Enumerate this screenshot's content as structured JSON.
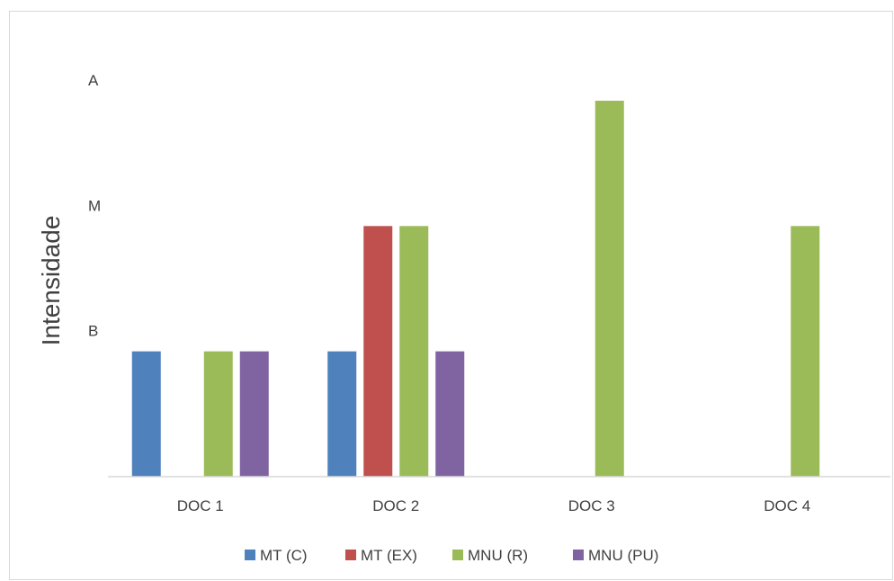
{
  "chart_data": {
    "type": "bar",
    "ylabel": "Intensidade",
    "xlabel": "",
    "categories": [
      "DOC 1",
      "DOC 2",
      "DOC 3",
      "DOC 4"
    ],
    "y_levels": [
      "B",
      "M",
      "A"
    ],
    "ylim": [
      0,
      3
    ],
    "grid": false,
    "legend_position": "bottom",
    "series": [
      {
        "name": "MT (C)",
        "color": "#4f81bd",
        "values": [
          1,
          1,
          0,
          0
        ]
      },
      {
        "name": "MT (EX)",
        "color": "#c0504d",
        "values": [
          0,
          2,
          0,
          0
        ]
      },
      {
        "name": "MNU (R)",
        "color": "#9bbb59",
        "values": [
          1,
          2,
          3,
          2
        ]
      },
      {
        "name": "MNU (PU)",
        "color": "#8064a2",
        "values": [
          1,
          1,
          0,
          0
        ]
      }
    ]
  }
}
